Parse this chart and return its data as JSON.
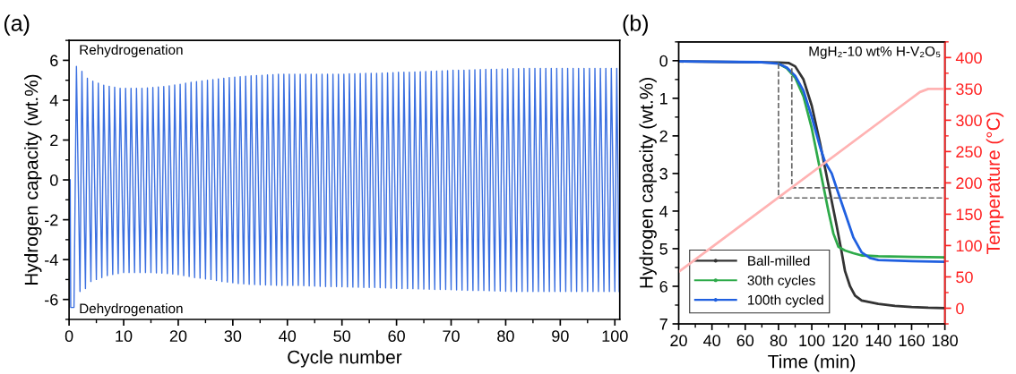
{
  "chart_data": [
    {
      "type": "line",
      "xlabel": "Cycle number",
      "ylabel": "Hydrogen capacity (wt.%)",
      "annotations": [
        "(a)",
        "Rehydrogenation",
        "Dehydrogenation"
      ],
      "xlim": [
        0,
        100.9
      ],
      "ylim": [
        -7,
        7
      ],
      "xticks": [
        0,
        10,
        20,
        30,
        40,
        50,
        60,
        70,
        80,
        90,
        100
      ],
      "yticks": [
        -6,
        -4,
        -2,
        0,
        2,
        4,
        6
      ],
      "grid": false,
      "legend": false,
      "series": [
        {
          "color": "#3a6fe0",
          "x": [
            0.2,
            0.3,
            0.9,
            1.35,
            2,
            2.35,
            3,
            3.35,
            4,
            4.35,
            5,
            5.35,
            6,
            6.35,
            7,
            7.35,
            8,
            8.35,
            9,
            9.35,
            10,
            10.35,
            11,
            11.35,
            12,
            12.35,
            13,
            13.35,
            14,
            14.35,
            15,
            15.35,
            16,
            16.35,
            17,
            17.35,
            18,
            18.35,
            19,
            19.35,
            20,
            20.35,
            21,
            21.35,
            22,
            22.35,
            23,
            23.35,
            24,
            24.35,
            25,
            25.35,
            26,
            26.35,
            27,
            27.35,
            28,
            28.35,
            29,
            29.35,
            30,
            30.35,
            31,
            31.35,
            32,
            32.35,
            33,
            33.35,
            34,
            34.35,
            35,
            35.35,
            36,
            36.35,
            37,
            37.35,
            38,
            38.35,
            39,
            39.35,
            40,
            40.35,
            41,
            41.35,
            42,
            42.35,
            43,
            43.35,
            44,
            44.35,
            45,
            45.35,
            46,
            46.35,
            47,
            47.35,
            48,
            48.35,
            49,
            49.35,
            50,
            50.35,
            51,
            51.35,
            52,
            52.35,
            53,
            53.35,
            54,
            54.35,
            55,
            55.35,
            56,
            56.35,
            57,
            57.35,
            58,
            58.35,
            59,
            59.35,
            60,
            60.35,
            61,
            61.35,
            62,
            62.35,
            63,
            63.35,
            64,
            64.35,
            65,
            65.35,
            66,
            66.35,
            67,
            67.35,
            68,
            68.35,
            69,
            69.35,
            70,
            70.35,
            71,
            71.35,
            72,
            72.35,
            73,
            73.35,
            74,
            74.35,
            75,
            75.35,
            76,
            76.35,
            77,
            77.35,
            78,
            78.35,
            79,
            79.35,
            80,
            80.35,
            81,
            81.35,
            82,
            82.35,
            83,
            83.35,
            84,
            84.35,
            85,
            85.35,
            86,
            86.35,
            87,
            87.35,
            88,
            88.35,
            89,
            89.35,
            90,
            90.35,
            91,
            91.35,
            92,
            92.35,
            93,
            93.35,
            94,
            94.35,
            95,
            95.35,
            96,
            96.35,
            97,
            97.35,
            98,
            98.35,
            99,
            99.35,
            100,
            100.35,
            100.8
          ],
          "values": [
            0,
            -6.4,
            -6.4,
            5.7,
            -5.6,
            5.45,
            -5.45,
            5.1,
            -5.1,
            4.95,
            -5.0,
            4.85,
            -4.9,
            4.75,
            -4.8,
            4.7,
            -4.75,
            4.65,
            -4.7,
            4.6,
            -4.65,
            4.6,
            -4.65,
            4.6,
            -4.65,
            4.6,
            -4.65,
            4.6,
            -4.65,
            4.62,
            -4.65,
            4.64,
            -4.67,
            4.66,
            -4.68,
            4.68,
            -4.7,
            4.72,
            -4.72,
            4.76,
            -4.76,
            4.8,
            -4.8,
            4.85,
            -4.85,
            4.9,
            -4.9,
            4.93,
            -4.93,
            4.97,
            -4.97,
            5.0,
            -5.0,
            5.03,
            -5.05,
            5.07,
            -5.1,
            5.1,
            -5.13,
            5.13,
            -5.16,
            5.16,
            -5.2,
            5.18,
            -5.22,
            5.2,
            -5.24,
            5.22,
            -5.25,
            5.24,
            -5.26,
            5.25,
            -5.27,
            5.27,
            -5.28,
            5.28,
            -5.29,
            5.3,
            -5.3,
            5.3,
            -5.3,
            5.3,
            -5.3,
            5.3,
            -5.3,
            5.3,
            -5.31,
            5.3,
            -5.32,
            5.3,
            -5.33,
            5.3,
            -5.34,
            5.3,
            -5.35,
            5.3,
            -5.35,
            5.3,
            -5.35,
            5.3,
            -5.36,
            5.3,
            -5.37,
            5.32,
            -5.38,
            5.33,
            -5.39,
            5.34,
            -5.4,
            5.35,
            -5.4,
            5.35,
            -5.4,
            5.35,
            -5.41,
            5.36,
            -5.42,
            5.37,
            -5.43,
            5.38,
            -5.44,
            5.4,
            -5.45,
            5.4,
            -5.45,
            5.4,
            -5.46,
            5.42,
            -5.47,
            5.43,
            -5.48,
            5.44,
            -5.49,
            5.45,
            -5.5,
            5.46,
            -5.5,
            5.47,
            -5.5,
            5.48,
            -5.51,
            5.5,
            -5.52,
            5.5,
            -5.53,
            5.5,
            -5.54,
            5.52,
            -5.55,
            5.53,
            -5.55,
            5.54,
            -5.55,
            5.55,
            -5.56,
            5.55,
            -5.57,
            5.55,
            -5.58,
            5.56,
            -5.59,
            5.57,
            -5.6,
            5.58,
            -5.6,
            5.58,
            -5.6,
            5.59,
            -5.6,
            5.6,
            -5.6,
            5.6,
            -5.6,
            5.6,
            -5.6,
            5.6,
            -5.6,
            5.6,
            -5.6,
            5.6,
            -5.6,
            5.6,
            -5.6,
            5.6,
            -5.6,
            5.6,
            -5.6,
            5.6,
            -5.6,
            5.6,
            -5.6,
            5.6,
            -5.6,
            5.6,
            -5.6,
            5.6,
            -5.6,
            5.6,
            -5.6,
            5.6,
            -5.6,
            5.6,
            -5.6
          ]
        }
      ]
    },
    {
      "type": "line",
      "xlabel": "Time (min)",
      "ylabel": "Hydrogen capacity (wt.%)",
      "y2label": "Temperature (°C)",
      "annotations": [
        "(b)",
        "MgH₂-10 wt% H-V₂O₅"
      ],
      "xlim": [
        20,
        180
      ],
      "ylim": [
        7,
        -0.5
      ],
      "y2lim": [
        -25,
        425
      ],
      "xticks": [
        20,
        40,
        60,
        80,
        100,
        120,
        140,
        160,
        180
      ],
      "yticks": [
        0,
        1,
        2,
        3,
        4,
        5,
        6,
        7
      ],
      "y2ticks": [
        0,
        50,
        100,
        150,
        200,
        250,
        300,
        350,
        400
      ],
      "grid": false,
      "legend": "bottom left",
      "series": [
        {
          "name": "Ball-milled",
          "color": "#333333",
          "x": [
            20,
            80,
            86,
            90,
            95,
            100,
            105,
            110,
            115,
            118,
            120,
            123,
            126,
            130,
            140,
            150,
            160,
            170,
            180
          ],
          "values": [
            0.02,
            0.05,
            0.06,
            0.15,
            0.5,
            1.2,
            2.2,
            3.3,
            4.4,
            5.1,
            5.6,
            6.0,
            6.25,
            6.38,
            6.47,
            6.52,
            6.55,
            6.57,
            6.58
          ]
        },
        {
          "name": "30th cycles",
          "color": "#2eaa4a",
          "x": [
            80,
            85,
            90,
            95,
            100,
            105,
            110,
            113,
            116,
            120,
            125,
            130,
            140,
            160,
            180
          ],
          "values": [
            0.08,
            0.2,
            0.45,
            0.95,
            1.8,
            2.9,
            4.0,
            4.6,
            4.95,
            5.05,
            5.12,
            5.18,
            5.2,
            5.22,
            5.23
          ]
        },
        {
          "name": "100th cycled",
          "color": "#2060e0",
          "x": [
            20,
            70,
            80,
            85,
            90,
            95,
            100,
            105,
            108,
            112,
            115,
            120,
            125,
            130,
            135,
            140,
            160,
            180
          ],
          "values": [
            0.02,
            0.04,
            0.08,
            0.18,
            0.4,
            0.8,
            1.5,
            2.3,
            2.7,
            3.0,
            3.4,
            4.05,
            4.7,
            5.1,
            5.25,
            5.3,
            5.33,
            5.35
          ]
        },
        {
          "color": "#ffb3b3",
          "axis": "y2",
          "x": [
            20,
            165,
            170,
            180
          ],
          "values": [
            58,
            345,
            350,
            350
          ]
        },
        {
          "color": "#666666",
          "line_style": "dashed",
          "x": [
            80,
            80,
            180
          ],
          "values": [
            0.07,
            3.65,
            3.65
          ]
        },
        {
          "color": "#666666",
          "line_style": "dashed",
          "x": [
            88,
            88,
            180
          ],
          "values": [
            0.2,
            3.38,
            3.38
          ]
        }
      ]
    }
  ]
}
